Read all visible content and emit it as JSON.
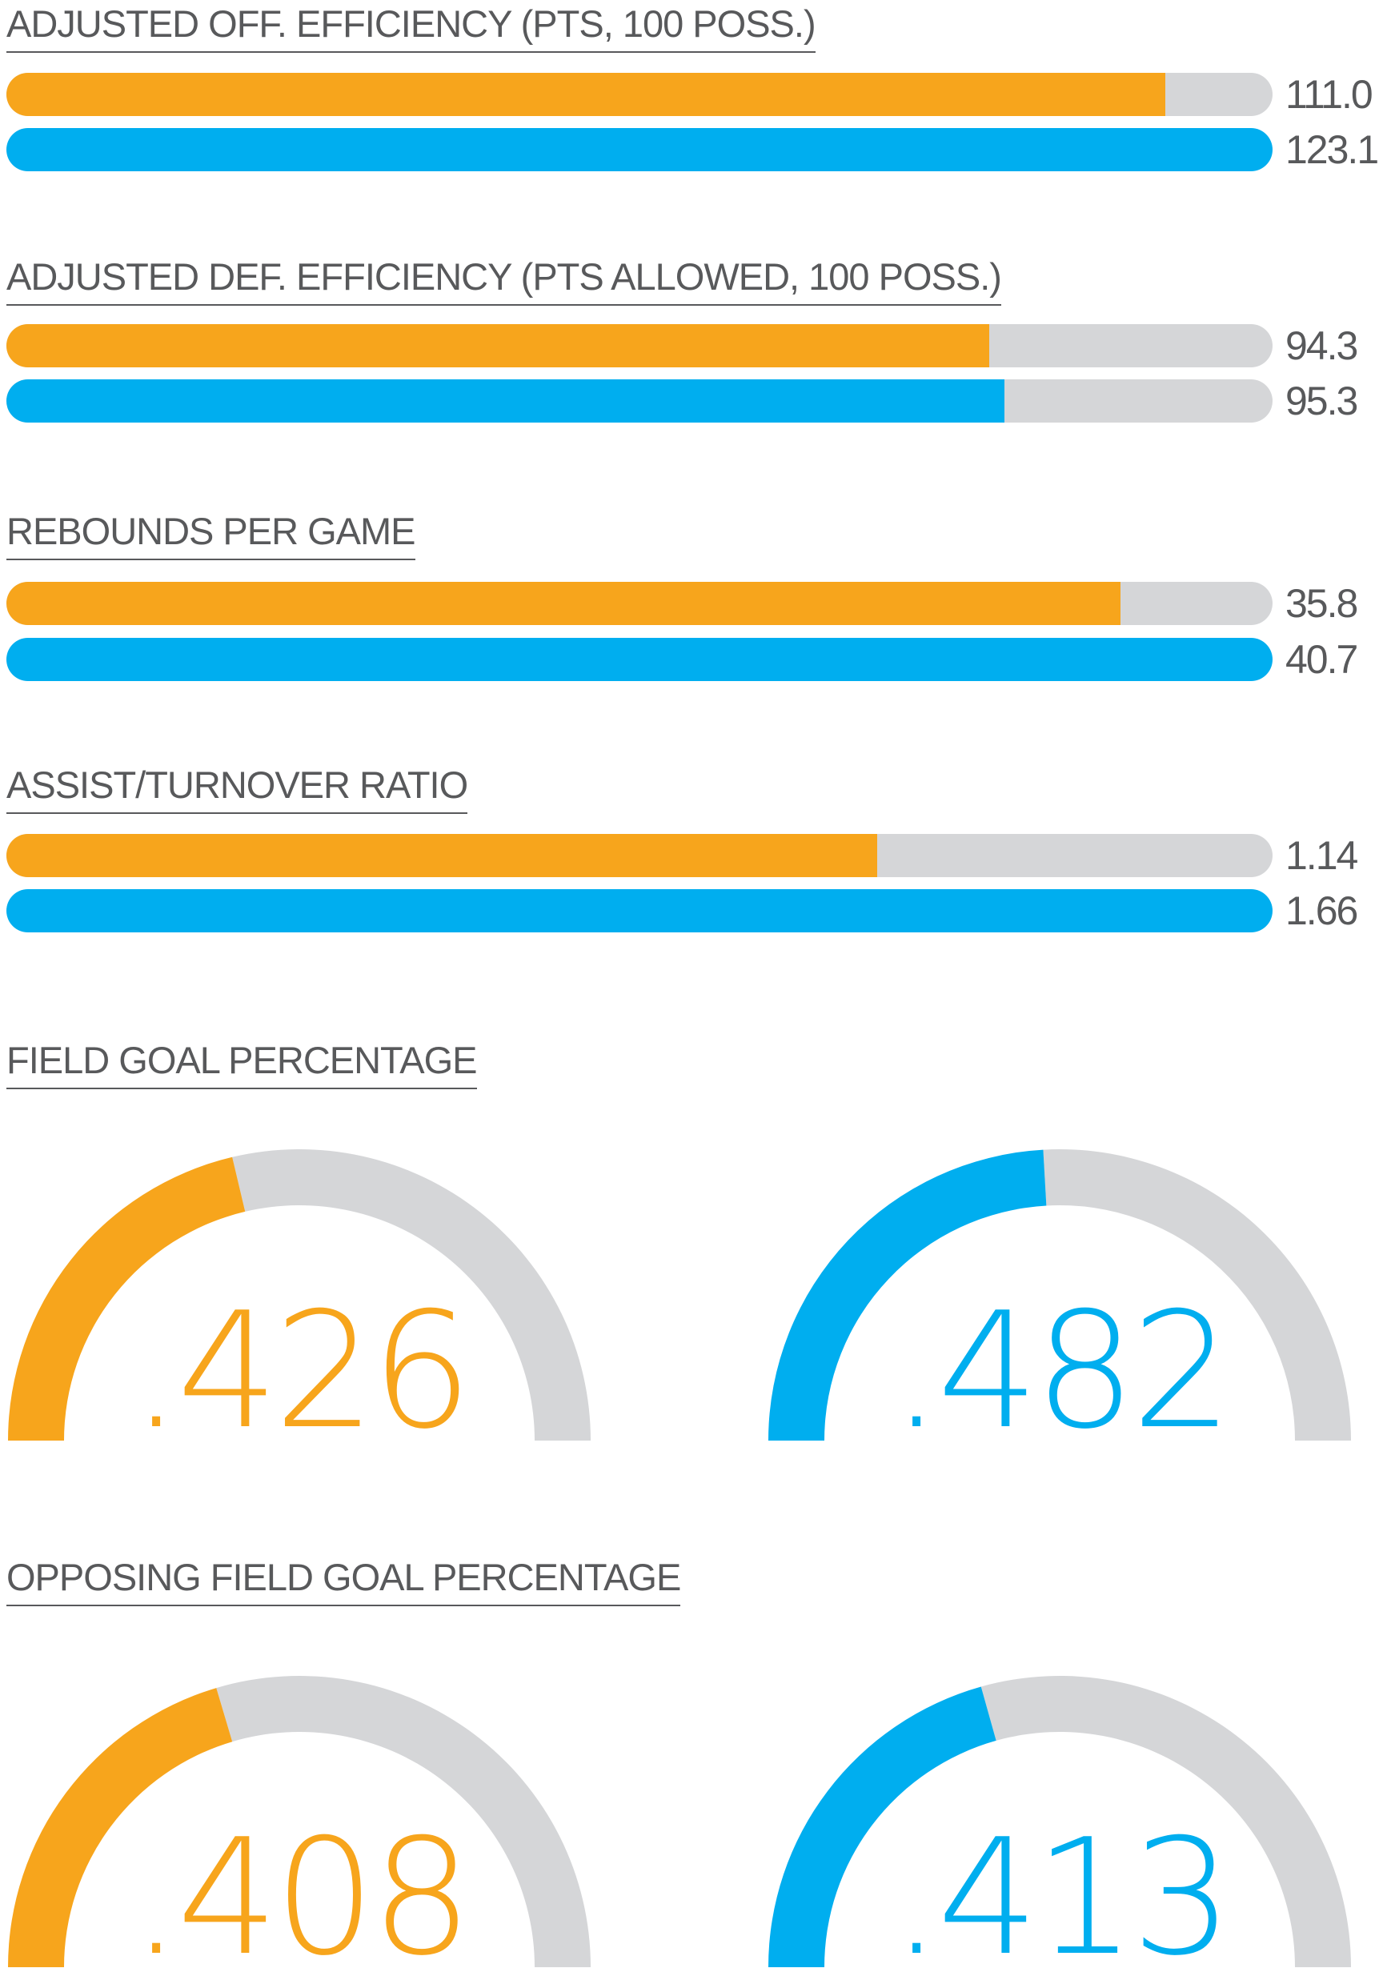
{
  "colors": {
    "team_a": "#F7A51C",
    "team_b": "#00AEEF",
    "track": "#D5D6D8",
    "text": "#58595B"
  },
  "chart_data": [
    {
      "type": "bar",
      "title": "ADJUSTED OFF. EFFICIENCY (PTS, 100 POSS.)",
      "values": [
        111.0,
        123.1
      ],
      "labels": [
        "111.0",
        "123.1"
      ],
      "fill": [
        0.915,
        1.0
      ]
    },
    {
      "type": "bar",
      "title": "ADJUSTED DEF. EFFICIENCY (PTS ALLOWED, 100 POSS.)",
      "values": [
        94.3,
        95.3
      ],
      "labels": [
        "94.3",
        "95.3"
      ],
      "fill": [
        0.776,
        0.788
      ]
    },
    {
      "type": "bar",
      "title": "REBOUNDS PER GAME",
      "values": [
        35.8,
        40.7
      ],
      "labels": [
        "35.8",
        "40.7"
      ],
      "fill": [
        0.88,
        1.0
      ]
    },
    {
      "type": "bar",
      "title": "ASSIST/TURNOVER RATIO",
      "values": [
        1.14,
        1.66
      ],
      "labels": [
        "1.14",
        "1.66"
      ],
      "fill": [
        0.688,
        1.0
      ]
    },
    {
      "type": "gauge",
      "title": "FIELD GOAL PERCENTAGE",
      "values": [
        0.426,
        0.482
      ],
      "labels": [
        ".426",
        ".482"
      ]
    },
    {
      "type": "gauge",
      "title": "OPPOSING FIELD GOAL PERCENTAGE",
      "values": [
        0.408,
        0.413
      ],
      "labels": [
        ".408",
        ".413"
      ]
    }
  ]
}
